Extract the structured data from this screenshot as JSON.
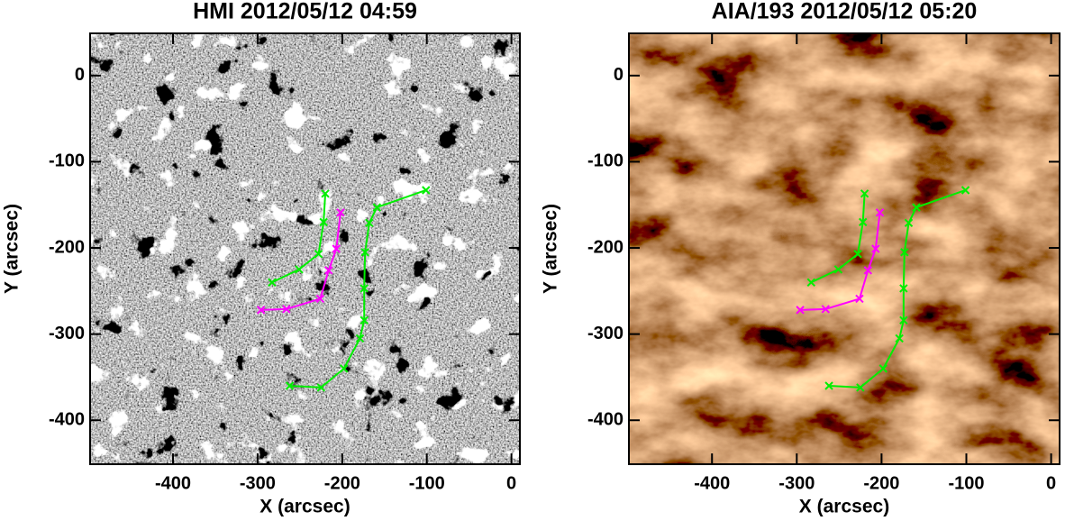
{
  "chart_data": [
    {
      "type": "line",
      "title": "HMI 2012/05/12 04:59",
      "xlabel": "X (arcsec)",
      "ylabel": "Y (arcsec)",
      "image_colors": [
        "#000000",
        "#808080",
        "#ffffff"
      ],
      "xlim": [
        -498,
        10
      ],
      "ylim": [
        -451,
        49
      ],
      "xticks": [
        -400,
        -300,
        -200,
        -100,
        0
      ],
      "yticks": [
        -400,
        -300,
        -200,
        -100,
        0
      ],
      "series": [
        {
          "color": "#00ee00",
          "x": [
            -283,
            -251,
            -228,
            -222,
            -220
          ],
          "values": [
            -240,
            -225,
            -207,
            -170,
            -137
          ]
        },
        {
          "color": "#00ee00",
          "x": [
            -101,
            -159,
            -168,
            -173,
            -174,
            -174,
            -179,
            -198,
            -225,
            -262
          ],
          "values": [
            -133,
            -153,
            -171,
            -205,
            -247,
            -284,
            -305,
            -340,
            -362,
            -360
          ]
        },
        {
          "color": "#ff00ff",
          "x": [
            -202,
            -207,
            -216,
            -226,
            -266,
            -296
          ],
          "values": [
            -159,
            -201,
            -226,
            -259,
            -271,
            -272
          ]
        }
      ]
    },
    {
      "type": "line",
      "title": "AIA/193 2012/05/12 05:20",
      "xlabel": "X (arcsec)",
      "ylabel": "Y (arcsec)",
      "image_colors": [
        "#2a1000",
        "#8a5a2a",
        "#f0d8b0"
      ],
      "xlim": [
        -498,
        10
      ],
      "ylim": [
        -451,
        49
      ],
      "xticks": [
        -400,
        -300,
        -200,
        -100,
        0
      ],
      "yticks": [
        -400,
        -300,
        -200,
        -100,
        0
      ],
      "series": [
        {
          "color": "#00ee00",
          "x": [
            -283,
            -251,
            -228,
            -222,
            -220
          ],
          "values": [
            -240,
            -225,
            -207,
            -170,
            -137
          ]
        },
        {
          "color": "#00ee00",
          "x": [
            -101,
            -159,
            -168,
            -173,
            -174,
            -174,
            -179,
            -198,
            -225,
            -262
          ],
          "values": [
            -133,
            -153,
            -171,
            -205,
            -247,
            -284,
            -305,
            -340,
            -362,
            -360
          ]
        },
        {
          "color": "#ff00ff",
          "x": [
            -202,
            -207,
            -216,
            -226,
            -266,
            -296
          ],
          "values": [
            -159,
            -201,
            -226,
            -259,
            -271,
            -272
          ]
        }
      ]
    }
  ]
}
